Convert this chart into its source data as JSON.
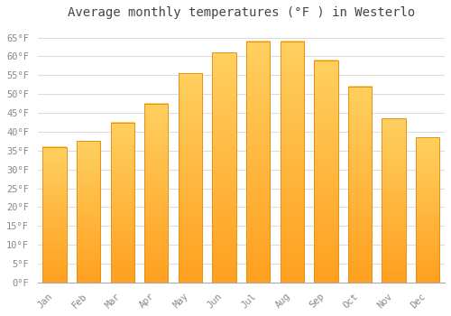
{
  "title": "Average monthly temperatures (°F ) in Westerlo",
  "months": [
    "Jan",
    "Feb",
    "Mar",
    "Apr",
    "May",
    "Jun",
    "Jul",
    "Aug",
    "Sep",
    "Oct",
    "Nov",
    "Dec"
  ],
  "values": [
    36,
    37.5,
    42.5,
    47.5,
    55.5,
    61,
    64,
    64,
    59,
    52,
    43.5,
    38.5
  ],
  "bar_color_top": "#FFD060",
  "bar_color_bottom": "#FFA020",
  "bar_edge_color": "#E89010",
  "ylim": [
    0,
    68
  ],
  "yticks": [
    0,
    5,
    10,
    15,
    20,
    25,
    30,
    35,
    40,
    45,
    50,
    55,
    60,
    65
  ],
  "ytick_labels": [
    "0°F",
    "5°F",
    "10°F",
    "15°F",
    "20°F",
    "25°F",
    "30°F",
    "35°F",
    "40°F",
    "45°F",
    "50°F",
    "55°F",
    "60°F",
    "65°F"
  ],
  "grid_color": "#dddddd",
  "bg_color": "#ffffff",
  "title_fontsize": 10,
  "tick_fontsize": 7.5,
  "bar_width": 0.7
}
